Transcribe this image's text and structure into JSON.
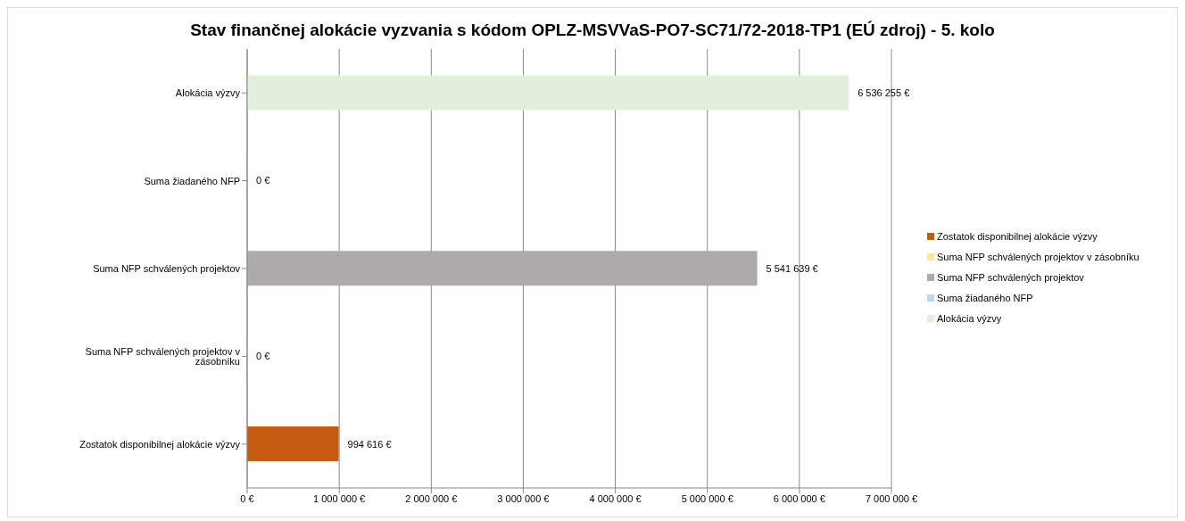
{
  "chart_data": {
    "type": "bar",
    "orientation": "horizontal",
    "stacked": true,
    "title": "Stav finančnej alokácie vyzvania s kódom OPLZ-MSVVaS-PO7-SC71/72-2018-TP1 (EÚ zdroj) - 5. kolo",
    "categories": [
      "Alokácia výzvy",
      "Suma žiadaného NFP",
      "Suma NFP schválených projektov",
      "Suma NFP schválených projektov v zásobníku",
      "Zostatok disponibilnej alokácie výzvy"
    ],
    "series": [
      {
        "name": "Zostatok disponibilnej alokácie výzvy",
        "color": "#c55a11",
        "values": [
          null,
          null,
          null,
          null,
          994616
        ],
        "value_labels": [
          null,
          null,
          null,
          null,
          "994 616 €"
        ]
      },
      {
        "name": "Suma NFP schválených projektov v zásobníku",
        "color": "#ffe699",
        "values": [
          null,
          null,
          null,
          0,
          null
        ],
        "value_labels": [
          null,
          null,
          null,
          "0 €",
          null
        ]
      },
      {
        "name": "Suma NFP schválených projektov",
        "color": "#aeaaaa",
        "values": [
          null,
          null,
          5541639,
          null,
          null
        ],
        "value_labels": [
          null,
          null,
          "5 541 639 €",
          null,
          null
        ]
      },
      {
        "name": "Suma žiadaného NFP",
        "color": "#bdd7ee",
        "values": [
          null,
          0,
          null,
          null,
          null
        ],
        "value_labels": [
          null,
          "0 €",
          null,
          null,
          null
        ]
      },
      {
        "name": "Alokácia výzvy",
        "color": "#e2efda",
        "values": [
          6536255,
          null,
          null,
          null,
          null
        ],
        "value_labels": [
          "6 536 255 €",
          null,
          null,
          null,
          null
        ]
      }
    ],
    "xlim": [
      0,
      7000000
    ],
    "xticks": [
      {
        "value": 0,
        "label": "0 €"
      },
      {
        "value": 1000000,
        "label": "1 000 000 €"
      },
      {
        "value": 2000000,
        "label": "2 000 000 €"
      },
      {
        "value": 3000000,
        "label": "3 000 000 €"
      },
      {
        "value": 4000000,
        "label": "4 000 000 €"
      },
      {
        "value": 5000000,
        "label": "5 000 000 €"
      },
      {
        "value": 6000000,
        "label": "6 000 000 €"
      },
      {
        "value": 7000000,
        "label": "7 000 000 €"
      }
    ],
    "grid": "x",
    "legend": "right"
  }
}
